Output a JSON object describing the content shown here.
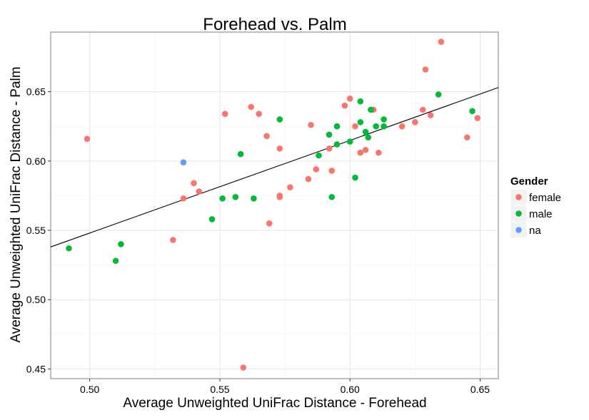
{
  "chart_data": {
    "type": "scatter",
    "title": "Forehead vs. Palm",
    "xlabel": "Average Unweighted UniFrac Distance - Forehead",
    "ylabel": "Average Unweighted UniFrac Distance - Palm",
    "xlim": [
      0.485,
      0.657
    ],
    "ylim": [
      0.443,
      0.693
    ],
    "xticks": [
      "0.50",
      "0.55",
      "0.60",
      "0.65"
    ],
    "yticks": [
      "0.45",
      "0.50",
      "0.55",
      "0.60",
      "0.65"
    ],
    "grid": true,
    "legend": {
      "title": "Gender",
      "position": "right"
    },
    "colors": {
      "female": "#F8766D",
      "male": "#00BA38",
      "na": "#619CFF",
      "line": "#000000"
    },
    "fit_line": [
      [
        0.485,
        0.538
      ],
      [
        0.657,
        0.653
      ]
    ],
    "series": [
      {
        "name": "female",
        "points": [
          [
            0.499,
            0.616
          ],
          [
            0.532,
            0.543
          ],
          [
            0.536,
            0.573
          ],
          [
            0.54,
            0.584
          ],
          [
            0.542,
            0.578
          ],
          [
            0.552,
            0.634
          ],
          [
            0.559,
            0.451
          ],
          [
            0.562,
            0.639
          ],
          [
            0.565,
            0.634
          ],
          [
            0.568,
            0.618
          ],
          [
            0.569,
            0.555
          ],
          [
            0.573,
            0.609
          ],
          [
            0.573,
            0.575
          ],
          [
            0.573,
            0.574
          ],
          [
            0.577,
            0.581
          ],
          [
            0.584,
            0.587
          ],
          [
            0.585,
            0.626
          ],
          [
            0.587,
            0.594
          ],
          [
            0.592,
            0.609
          ],
          [
            0.593,
            0.593
          ],
          [
            0.598,
            0.64
          ],
          [
            0.6,
            0.645
          ],
          [
            0.602,
            0.625
          ],
          [
            0.604,
            0.606
          ],
          [
            0.606,
            0.608
          ],
          [
            0.609,
            0.637
          ],
          [
            0.611,
            0.606
          ],
          [
            0.62,
            0.625
          ],
          [
            0.625,
            0.628
          ],
          [
            0.628,
            0.637
          ],
          [
            0.629,
            0.666
          ],
          [
            0.631,
            0.633
          ],
          [
            0.635,
            0.686
          ],
          [
            0.645,
            0.617
          ],
          [
            0.649,
            0.631
          ]
        ]
      },
      {
        "name": "male",
        "points": [
          [
            0.492,
            0.537
          ],
          [
            0.51,
            0.528
          ],
          [
            0.512,
            0.54
          ],
          [
            0.547,
            0.558
          ],
          [
            0.551,
            0.573
          ],
          [
            0.556,
            0.574
          ],
          [
            0.558,
            0.605
          ],
          [
            0.563,
            0.573
          ],
          [
            0.573,
            0.63
          ],
          [
            0.588,
            0.604
          ],
          [
            0.592,
            0.619
          ],
          [
            0.593,
            0.574
          ],
          [
            0.595,
            0.612
          ],
          [
            0.595,
            0.625
          ],
          [
            0.6,
            0.614
          ],
          [
            0.602,
            0.588
          ],
          [
            0.604,
            0.643
          ],
          [
            0.604,
            0.628
          ],
          [
            0.606,
            0.621
          ],
          [
            0.607,
            0.617
          ],
          [
            0.608,
            0.637
          ],
          [
            0.61,
            0.625
          ],
          [
            0.613,
            0.625
          ],
          [
            0.613,
            0.63
          ],
          [
            0.634,
            0.648
          ],
          [
            0.647,
            0.636
          ]
        ]
      },
      {
        "name": "na",
        "points": [
          [
            0.536,
            0.599
          ]
        ]
      }
    ]
  }
}
